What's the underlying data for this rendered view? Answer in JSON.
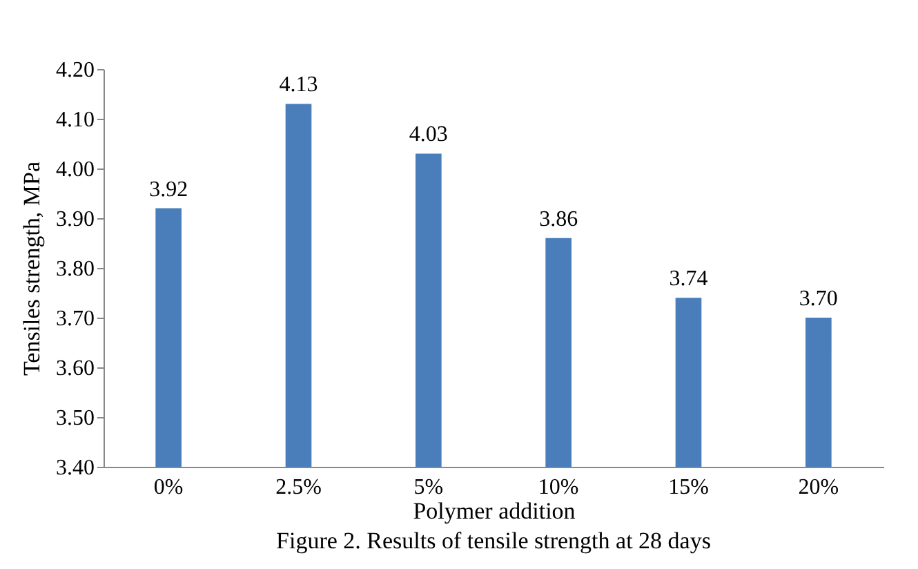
{
  "chart_data": {
    "type": "bar",
    "xlabel": "Polymer addition",
    "ylabel": "Tensiles strength, MPa",
    "categories": [
      "0%",
      "2.5%",
      "5%",
      "10%",
      "15%",
      "20%"
    ],
    "values": [
      3.92,
      4.13,
      4.03,
      3.86,
      3.74,
      3.7
    ],
    "value_labels": [
      "3.92",
      "4.13",
      "4.03",
      "3.86",
      "3.74",
      "3.70"
    ],
    "color": "#4a7ebb",
    "ylim": [
      3.4,
      4.2
    ],
    "yticks": [
      {
        "value": 3.4,
        "label": "3.40"
      },
      {
        "value": 3.5,
        "label": "3.50"
      },
      {
        "value": 3.6,
        "label": "3.60"
      },
      {
        "value": 3.7,
        "label": "3.70"
      },
      {
        "value": 3.8,
        "label": "3.80"
      },
      {
        "value": 3.9,
        "label": "3.90"
      },
      {
        "value": 4.0,
        "label": "4.00"
      },
      {
        "value": 4.1,
        "label": "4.10"
      },
      {
        "value": 4.2,
        "label": "4.20"
      }
    ],
    "grid": false,
    "annotations": [
      "Figure 2. Results of tensile strength at 28 days"
    ]
  }
}
